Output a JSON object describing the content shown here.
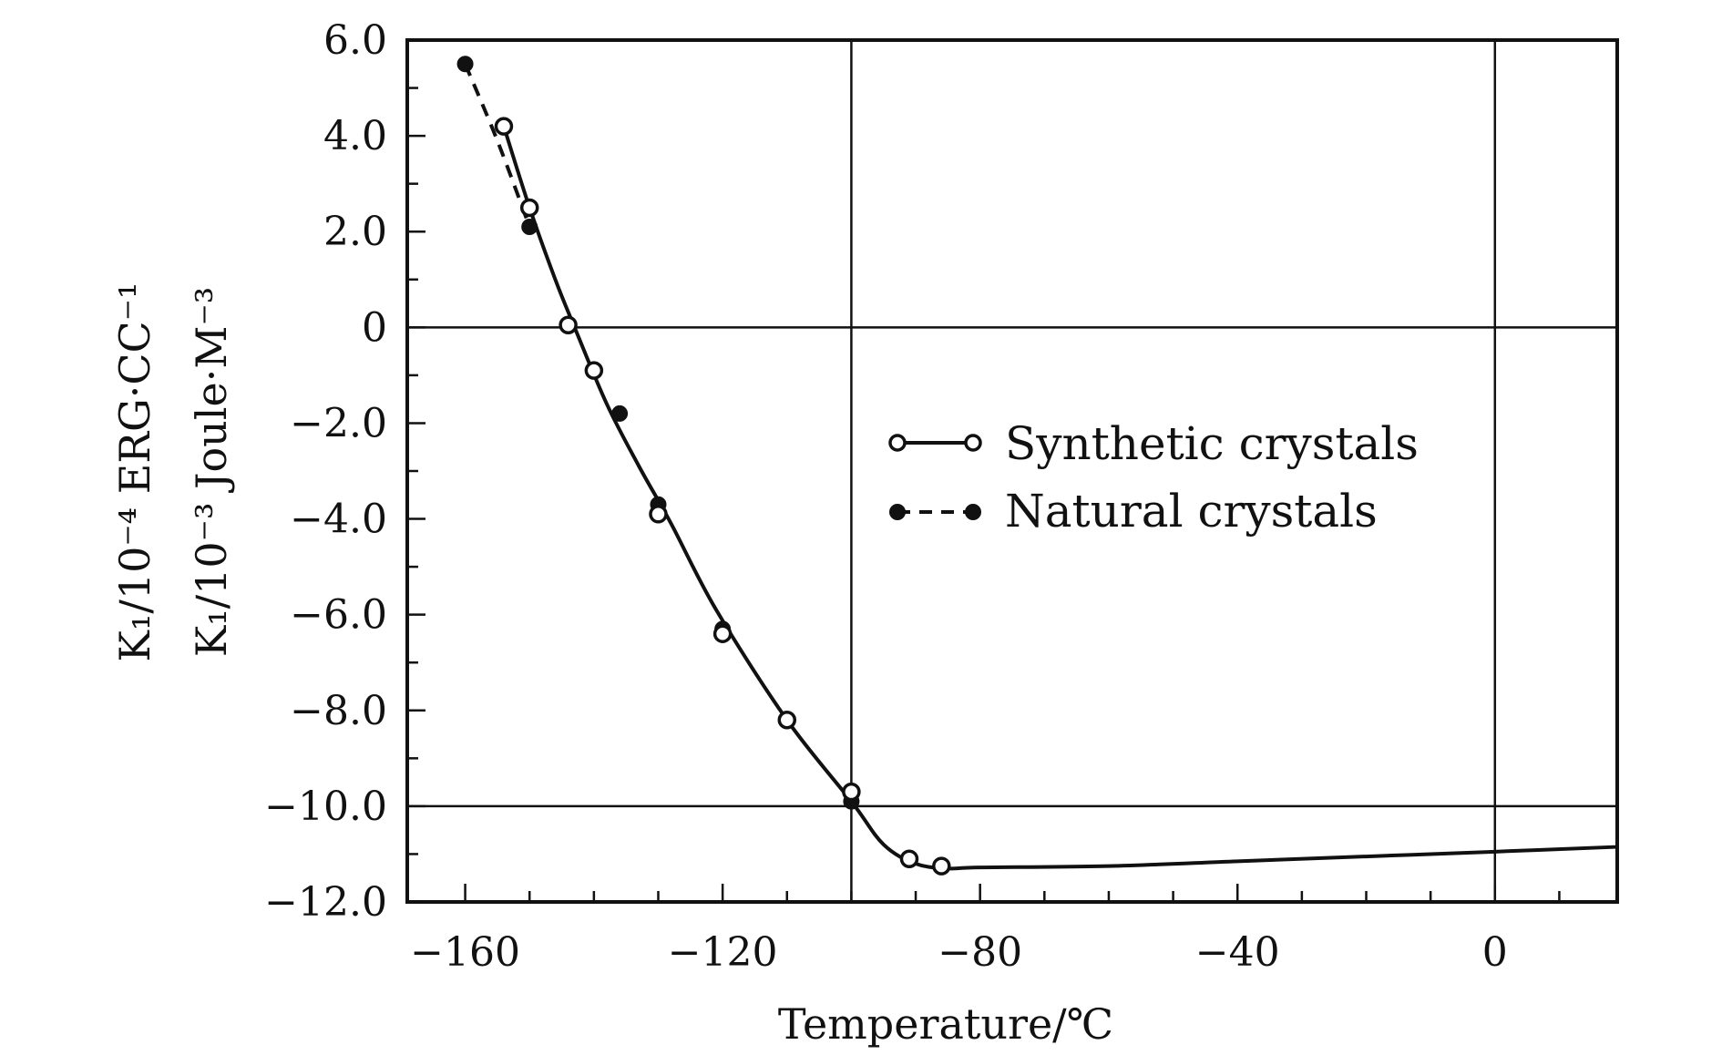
{
  "chart_data": {
    "type": "line",
    "title": "",
    "xlabel": "Temperature/℃",
    "ylabel": [
      "K₁/10⁻⁴ ERG·CC⁻¹",
      "K₁/10⁻³ Joule·M⁻³"
    ],
    "xlim": [
      -169,
      19
    ],
    "ylim": [
      -12,
      6
    ],
    "x_ticks": [
      -160,
      -120,
      -80,
      -40,
      0
    ],
    "x_tick_labels": [
      "−160",
      "−120",
      "−80",
      "−40",
      "0"
    ],
    "y_ticks": [
      6,
      4,
      2,
      0,
      -2,
      -4,
      -6,
      -8,
      -10,
      -12
    ],
    "y_tick_labels": [
      "6.0",
      "4.0",
      "2.0",
      "0",
      "−2.0",
      "−4.0",
      "−6.0",
      "−8.0",
      "−10.0",
      "−12.0"
    ],
    "gridlines": {
      "x": [
        -100,
        0
      ],
      "y": [
        0,
        -10
      ]
    },
    "legend_position": "center-right",
    "curve": {
      "x": [
        -160,
        -154,
        -150,
        -146,
        -143,
        -138,
        -133,
        -128,
        -121,
        -110,
        -100,
        -95,
        -90,
        -85,
        -80,
        -60,
        -40,
        -20,
        0,
        19
      ],
      "y": [
        5.5,
        4.2,
        2.5,
        1.0,
        0.0,
        -1.6,
        -2.9,
        -4.1,
        -5.9,
        -8.2,
        -9.9,
        -10.8,
        -11.2,
        -11.3,
        -11.28,
        -11.25,
        -11.15,
        -11.05,
        -10.95,
        -10.85
      ]
    },
    "series": [
      {
        "name": "Synthetic crystals",
        "style": "solid",
        "marker": "open-circle",
        "x": [
          -154,
          -150,
          -144,
          -140,
          -130,
          -120,
          -110,
          -100,
          -91,
          -86
        ],
        "y": [
          4.2,
          2.5,
          0.05,
          -0.9,
          -3.9,
          -6.4,
          -8.2,
          -9.7,
          -11.1,
          -11.25
        ]
      },
      {
        "name": "Natural crystals",
        "style": "dashed",
        "marker": "filled-circle",
        "x": [
          -160,
          -150,
          -136,
          -130,
          -120,
          -100
        ],
        "y": [
          5.5,
          2.1,
          -1.8,
          -3.7,
          -6.3,
          -9.9
        ]
      }
    ]
  }
}
